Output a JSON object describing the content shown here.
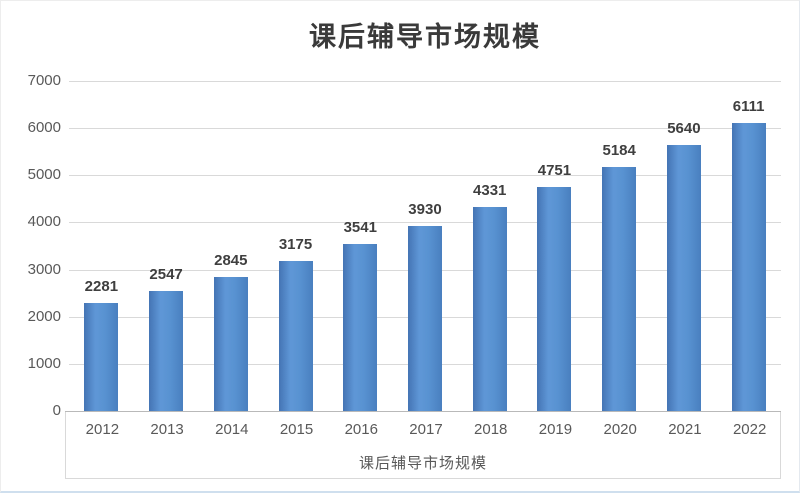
{
  "chart_data": {
    "type": "bar",
    "title": "课后辅导市场规模",
    "categories": [
      "2012",
      "2013",
      "2014",
      "2015",
      "2016",
      "2017",
      "2018",
      "2019",
      "2020",
      "2021",
      "2022"
    ],
    "values": [
      2281,
      2547,
      2845,
      3175,
      3541,
      3930,
      4331,
      4751,
      5184,
      5640,
      6111
    ],
    "xlabel": "课后辅导市场规模",
    "ylabel": "",
    "ylim": [
      0,
      7000
    ],
    "ytick_step": 1000,
    "grid": "on",
    "legend": "none",
    "data_labels": "above-bars",
    "colors": {
      "bar_left": "#4474b4",
      "bar_mid": "#5f97d7",
      "bar_right": "#497fbf",
      "gridline": "#d9d9d9",
      "axis_line": "#b9b9b9",
      "tick_text": "#595959",
      "label_text": "#3f3f3f",
      "title_text": "#3a3a3a"
    }
  }
}
